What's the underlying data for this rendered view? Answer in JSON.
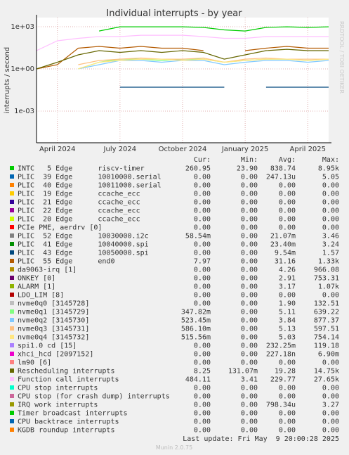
{
  "chart_data": {
    "type": "line",
    "title": "Individual interrupts - by year",
    "y_label": "interrupts / second",
    "side_label": "RRDTOOL / TOBI OETIKER",
    "footer": "Last update: Fri May  9 20:00:28 2025",
    "version": "Munin 2.0.75",
    "log_y": true,
    "grid": true,
    "ylim": [
      5.6e-06,
      4500
    ],
    "yticks": [
      {
        "value": 1000,
        "label": "1e+03"
      },
      {
        "value": 1,
        "label": "1e+00"
      },
      {
        "value": 0.001,
        "label": "1e-03"
      }
    ],
    "xlim": [
      "2024-03",
      "2025-05"
    ],
    "xticks": [
      {
        "value": "2024-04",
        "label": "April 2024"
      },
      {
        "value": "2024-07",
        "label": "July 2024"
      },
      {
        "value": "2024-10",
        "label": "October 2024"
      },
      {
        "value": "2025-01",
        "label": "January 2025"
      },
      {
        "value": "2025-04",
        "label": "April 2025"
      }
    ],
    "x": [
      "2024-03",
      "2024-04",
      "2024-05",
      "2024-06",
      "2024-07",
      "2024-08",
      "2024-09",
      "2024-10",
      "2024-11",
      "2024-12",
      "2025-01",
      "2025-02",
      "2025-03",
      "2025-04",
      "2025-05"
    ],
    "columns": [
      "Cur:",
      "Min:",
      "Avg:",
      "Max:"
    ],
    "series": [
      {
        "name": "INTC   5 Edge      riscv-timer",
        "color": "#00cc00",
        "cur": "260.95",
        "min": "23.90",
        "avg": "838.74",
        "max": "8.95k",
        "values": [
          null,
          null,
          null,
          500,
          1000,
          1000,
          1000,
          1000,
          900,
          600,
          500,
          900,
          1000,
          900,
          1000
        ]
      },
      {
        "name": "PLIC  39 Edge      10010000.serial",
        "color": "#0066b3",
        "cur": "0.00",
        "min": "0.00",
        "avg": "247.13u",
        "max": "5.05",
        "values": [
          null,
          null,
          null,
          null,
          null,
          null,
          null,
          null,
          null,
          null,
          null,
          null,
          null,
          null,
          null
        ]
      },
      {
        "name": "PLIC  40 Edge      10011000.serial",
        "color": "#ff8000",
        "cur": "0.00",
        "min": "0.00",
        "avg": "0.00",
        "max": "0.00",
        "values": [
          null,
          null,
          null,
          null,
          null,
          null,
          null,
          null,
          null,
          null,
          null,
          null,
          null,
          null,
          null
        ]
      },
      {
        "name": "PLIC  19 Edge      ccache_ecc",
        "color": "#ffcc00",
        "cur": "0.00",
        "min": "0.00",
        "avg": "0.00",
        "max": "0.00",
        "values": [
          null,
          null,
          null,
          null,
          null,
          null,
          null,
          null,
          null,
          null,
          null,
          null,
          null,
          null,
          null
        ]
      },
      {
        "name": "PLIC  21 Edge      ccache_ecc",
        "color": "#330099",
        "cur": "0.00",
        "min": "0.00",
        "avg": "0.00",
        "max": "0.00",
        "values": [
          null,
          null,
          null,
          null,
          null,
          null,
          null,
          null,
          null,
          null,
          null,
          null,
          null,
          null,
          null
        ]
      },
      {
        "name": "PLIC  22 Edge      ccache_ecc",
        "color": "#990099",
        "cur": "0.00",
        "min": "0.00",
        "avg": "0.00",
        "max": "0.00",
        "values": [
          null,
          null,
          null,
          null,
          null,
          null,
          null,
          null,
          null,
          null,
          null,
          null,
          null,
          null,
          null
        ]
      },
      {
        "name": "PLIC  20 Edge      ccache_ecc",
        "color": "#ccff00",
        "cur": "0.00",
        "min": "0.00",
        "avg": "0.00",
        "max": "0.00",
        "values": [
          null,
          null,
          null,
          null,
          null,
          null,
          null,
          null,
          null,
          null,
          null,
          null,
          null,
          null,
          null
        ]
      },
      {
        "name": "PCIe PME, aerdrv [0]",
        "color": "#ff0000",
        "cur": "0.00",
        "min": "0.00",
        "avg": "0.00",
        "max": "0.00",
        "values": [
          null,
          null,
          null,
          null,
          null,
          null,
          null,
          null,
          null,
          null,
          null,
          null,
          null,
          null,
          null
        ]
      },
      {
        "name": "PLIC  52 Edge      10030000.i2c",
        "color": "#808080",
        "cur": "58.54m",
        "min": "0.00",
        "avg": "21.07m",
        "max": "3.46",
        "values": [
          null,
          null,
          null,
          null,
          null,
          null,
          null,
          null,
          null,
          null,
          null,
          null,
          null,
          null,
          null
        ]
      },
      {
        "name": "PLIC  41 Edge      10040000.spi",
        "color": "#008f00",
        "cur": "0.00",
        "min": "0.00",
        "avg": "23.40m",
        "max": "3.24",
        "values": [
          null,
          null,
          null,
          null,
          null,
          null,
          null,
          null,
          null,
          null,
          null,
          null,
          null,
          null,
          null
        ]
      },
      {
        "name": "PLIC  43 Edge      10050000.spi",
        "color": "#00487d",
        "cur": "0.00",
        "min": "0.00",
        "avg": "9.54m",
        "max": "1.57",
        "values": [
          null,
          null,
          null,
          null,
          0.05,
          0.05,
          0.05,
          0.05,
          0.05,
          0.05,
          null,
          0.05,
          0.05,
          0.05,
          0.05
        ]
      },
      {
        "name": "PLIC  55 Edge      end0",
        "color": "#b35a00",
        "cur": "7.97",
        "min": "0.00",
        "avg": "31.16",
        "max": "1.33k",
        "values": [
          1,
          2,
          30,
          40,
          30,
          40,
          30,
          30,
          20,
          null,
          20,
          30,
          40,
          30,
          30
        ]
      },
      {
        "name": "da9063-irq [1]",
        "color": "#b38f00",
        "cur": "0.00",
        "min": "0.00",
        "avg": "4.26",
        "max": "966.08",
        "values": [
          null,
          null,
          null,
          null,
          null,
          null,
          null,
          null,
          null,
          null,
          null,
          null,
          null,
          null,
          null
        ]
      },
      {
        "name": "ONKEY [0]",
        "color": "#6b006b",
        "cur": "0.00",
        "min": "0.00",
        "avg": "2.91",
        "max": "753.31",
        "values": [
          null,
          null,
          null,
          null,
          null,
          null,
          null,
          null,
          null,
          null,
          null,
          null,
          null,
          null,
          null
        ]
      },
      {
        "name": "ALARM [1]",
        "color": "#8fb300",
        "cur": "0.00",
        "min": "0.00",
        "avg": "3.17",
        "max": "1.07k",
        "values": [
          null,
          null,
          null,
          null,
          null,
          null,
          null,
          null,
          null,
          null,
          null,
          null,
          null,
          null,
          null
        ]
      },
      {
        "name": "LDO_LIM [8]",
        "color": "#b30000",
        "cur": "0.00",
        "min": "0.00",
        "avg": "0.00",
        "max": "0.00",
        "values": [
          null,
          null,
          null,
          null,
          null,
          null,
          null,
          null,
          null,
          null,
          null,
          null,
          null,
          null,
          null
        ]
      },
      {
        "name": "nvme0q0 [3145728]",
        "color": "#bebebe",
        "cur": "0.00",
        "min": "0.00",
        "avg": "1.90",
        "max": "132.51",
        "values": [
          null,
          null,
          null,
          null,
          null,
          null,
          null,
          null,
          null,
          null,
          null,
          null,
          null,
          null,
          null
        ]
      },
      {
        "name": "nvme0q1 [3145729]",
        "color": "#80ff80",
        "cur": "347.82m",
        "min": "0.00",
        "avg": "5.11",
        "max": "639.22",
        "values": [
          null,
          null,
          1,
          3,
          5,
          5,
          4,
          5,
          5,
          3,
          4,
          5,
          5,
          4,
          5
        ]
      },
      {
        "name": "nvme0q2 [3145730]",
        "color": "#80c9ff",
        "cur": "523.45m",
        "min": "0.00",
        "avg": "3.84",
        "max": "877.37",
        "values": [
          null,
          null,
          1,
          2,
          4,
          4,
          3,
          4,
          4,
          2,
          3,
          4,
          4,
          3,
          4
        ]
      },
      {
        "name": "nvme0q3 [3145731]",
        "color": "#ffc080",
        "cur": "586.10m",
        "min": "0.00",
        "avg": "5.13",
        "max": "597.51",
        "values": [
          null,
          null,
          2,
          4,
          5,
          6,
          5,
          5,
          6,
          3,
          5,
          6,
          5,
          5,
          5
        ]
      },
      {
        "name": "nvme0q4 [3145732]",
        "color": "#ffe680",
        "cur": "515.56m",
        "min": "0.00",
        "avg": "5.03",
        "max": "754.14",
        "values": [
          null,
          null,
          1,
          3,
          4,
          5,
          5,
          4,
          5,
          3,
          4,
          5,
          5,
          4,
          5
        ]
      },
      {
        "name": "spi1.0 cd [15]",
        "color": "#aa80ff",
        "cur": "0.00",
        "min": "0.00",
        "avg": "232.25m",
        "max": "119.18",
        "values": [
          null,
          null,
          null,
          null,
          null,
          null,
          null,
          null,
          null,
          null,
          null,
          null,
          null,
          null,
          null
        ]
      },
      {
        "name": "xhci_hcd [2097152]",
        "color": "#ee00cc",
        "cur": "0.00",
        "min": "0.00",
        "avg": "227.18n",
        "max": "6.90m",
        "values": [
          null,
          null,
          null,
          null,
          null,
          null,
          null,
          null,
          null,
          null,
          null,
          null,
          null,
          null,
          null
        ]
      },
      {
        "name": "lm90 [6]",
        "color": "#ff8080",
        "cur": "0.00",
        "min": "0.00",
        "avg": "0.00",
        "max": "0.00",
        "values": [
          null,
          null,
          null,
          null,
          null,
          null,
          null,
          null,
          null,
          null,
          null,
          null,
          null,
          null,
          null
        ]
      },
      {
        "name": "Rescheduling interrupts",
        "color": "#666600",
        "cur": "8.25",
        "min": "131.07m",
        "avg": "19.28",
        "max": "14.75k",
        "values": [
          1,
          3,
          10,
          20,
          15,
          20,
          15,
          20,
          15,
          5,
          10,
          20,
          25,
          20,
          20
        ]
      },
      {
        "name": "Function call interrupts",
        "color": "#ffbfff",
        "cur": "484.11",
        "min": "3.41",
        "avg": "229.77",
        "max": "27.65k",
        "values": [
          20,
          100,
          150,
          200,
          200,
          250,
          250,
          250,
          200,
          150,
          150,
          200,
          200,
          200,
          200
        ]
      },
      {
        "name": "CPU stop interrupts",
        "color": "#00ffcc",
        "cur": "0.00",
        "min": "0.00",
        "avg": "0.00",
        "max": "0.00",
        "values": [
          null,
          null,
          null,
          null,
          null,
          null,
          null,
          null,
          null,
          null,
          null,
          null,
          null,
          null,
          null
        ]
      },
      {
        "name": "CPU stop (for crash dump) interrupts",
        "color": "#cc6699",
        "cur": "0.00",
        "min": "0.00",
        "avg": "0.00",
        "max": "0.00",
        "values": [
          null,
          null,
          null,
          null,
          null,
          null,
          null,
          null,
          null,
          null,
          null,
          null,
          null,
          null,
          null
        ]
      },
      {
        "name": "IRQ work interrupts",
        "color": "#999900",
        "cur": "0.00",
        "min": "0.00",
        "avg": "798.34u",
        "max": "3.27",
        "values": [
          null,
          null,
          null,
          null,
          null,
          null,
          null,
          null,
          null,
          null,
          null,
          null,
          null,
          null,
          null
        ]
      },
      {
        "name": "Timer broadcast interrupts",
        "color": "#00cc00",
        "cur": "0.00",
        "min": "0.00",
        "avg": "0.00",
        "max": "0.00",
        "values": [
          null,
          null,
          null,
          null,
          null,
          null,
          null,
          null,
          null,
          null,
          null,
          null,
          null,
          null,
          null
        ]
      },
      {
        "name": "CPU backtrace interrupts",
        "color": "#0066b3",
        "cur": "0.00",
        "min": "0.00",
        "avg": "0.00",
        "max": "0.00",
        "values": [
          null,
          null,
          null,
          null,
          null,
          null,
          null,
          null,
          null,
          null,
          null,
          null,
          null,
          null,
          null
        ]
      },
      {
        "name": "KGDB roundup interrupts",
        "color": "#ff8000",
        "cur": "0.00",
        "min": "0.00",
        "avg": "0.00",
        "max": "0.00",
        "values": [
          null,
          null,
          null,
          null,
          null,
          null,
          null,
          null,
          null,
          null,
          null,
          null,
          null,
          null,
          null
        ]
      }
    ]
  }
}
